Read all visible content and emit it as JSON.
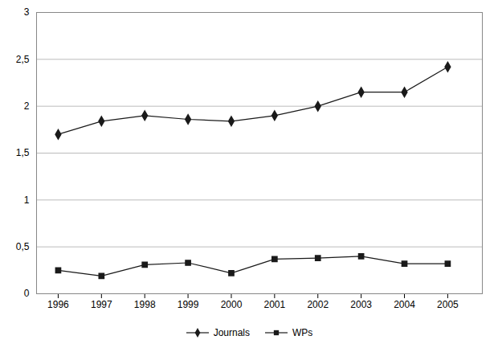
{
  "chart_data": {
    "type": "line",
    "x": [
      1996,
      1997,
      1998,
      1999,
      2000,
      2001,
      2002,
      2003,
      2004,
      2005
    ],
    "series": [
      {
        "name": "Journals",
        "color": "#1a1a1a",
        "marker": "diamond",
        "values": [
          1.7,
          1.84,
          1.9,
          1.86,
          1.84,
          1.9,
          2.0,
          2.15,
          2.15,
          2.42
        ]
      },
      {
        "name": "WPs",
        "color": "#1a1a1a",
        "marker": "square",
        "values": [
          0.25,
          0.19,
          0.31,
          0.33,
          0.22,
          0.37,
          0.38,
          0.4,
          0.32,
          0.32
        ]
      }
    ],
    "xlim": [
      1995.5,
      2005.8
    ],
    "xticks": [
      1996,
      1997,
      1998,
      1999,
      2000,
      2001,
      2002,
      2003,
      2004,
      2005
    ],
    "ylim": [
      0,
      3.0
    ],
    "yticks": [
      0,
      {
        "value": 0.5,
        "label": "0,5"
      },
      1,
      {
        "value": 1.5,
        "label": "1,5"
      },
      2,
      {
        "value": 2.5,
        "label": "2,5"
      },
      3
    ],
    "grid": true,
    "legend": "bottom"
  }
}
